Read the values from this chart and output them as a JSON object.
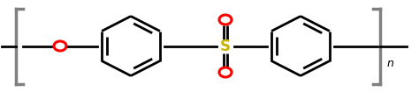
{
  "background_color": "#ffffff",
  "line_color": "#000000",
  "O_color": "#ff0000",
  "S_color": "#c8b400",
  "bracket_color": "#808080",
  "n_color": "#000000",
  "figsize": [
    4.74,
    1.05
  ],
  "dpi": 100
}
